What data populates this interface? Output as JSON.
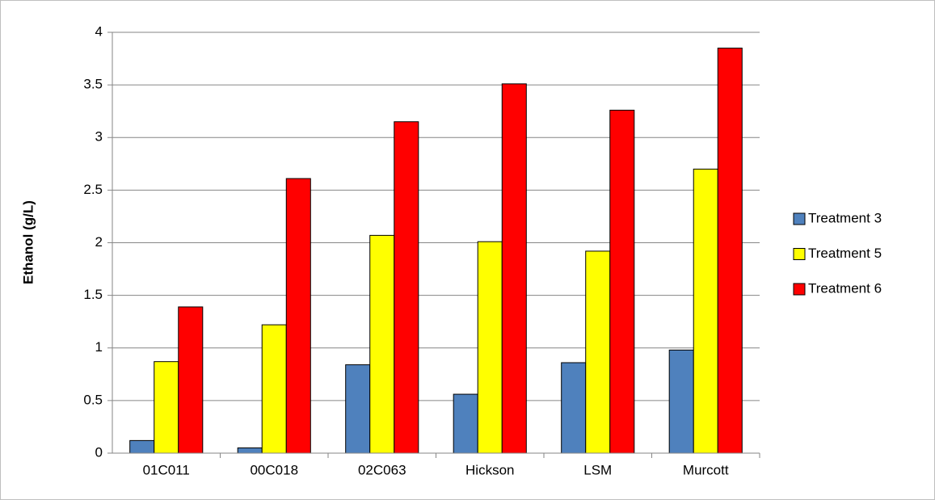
{
  "chart_data": {
    "type": "bar",
    "y_label": "Ethanol (g/L)",
    "categories": [
      "01C011",
      "00C018",
      "02C063",
      "Hickson",
      "LSM",
      "Murcott"
    ],
    "series": [
      {
        "name": "Treatment 3",
        "color": "#4f81bd",
        "values": [
          0.12,
          0.05,
          0.84,
          0.56,
          0.86,
          0.98
        ]
      },
      {
        "name": "Treatment 5",
        "color": "#ffff00",
        "values": [
          0.87,
          1.22,
          2.07,
          2.01,
          1.92,
          2.7
        ]
      },
      {
        "name": "Treatment 6",
        "color": "#ff0000",
        "values": [
          1.39,
          2.61,
          3.15,
          3.51,
          3.26,
          3.85
        ]
      }
    ],
    "ylim": [
      0,
      4
    ],
    "yticks": [
      0,
      0.5,
      1,
      1.5,
      2,
      2.5,
      3,
      3.5,
      4
    ],
    "grid": true,
    "legend": "right"
  }
}
